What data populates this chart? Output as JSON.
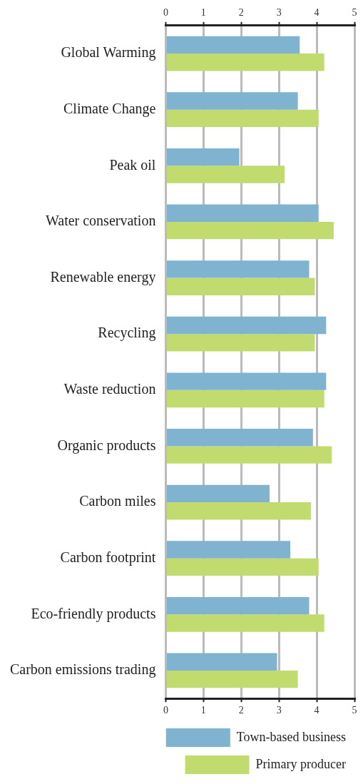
{
  "chart_data": {
    "type": "bar",
    "orientation": "horizontal",
    "categories": [
      "Global Warming",
      "Climate Change",
      "Peak oil",
      "Water conservation",
      "Renewable energy",
      "Recycling",
      "Waste reduction",
      "Organic products",
      "Carbon miles",
      "Carbon footprint",
      "Eco-friendly products",
      "Carbon emissions trading"
    ],
    "series": [
      {
        "name": "Town-based business",
        "color": "#7fb3cf",
        "values": [
          3.55,
          3.5,
          1.95,
          4.05,
          3.8,
          4.25,
          4.25,
          3.9,
          2.75,
          3.3,
          3.8,
          2.95
        ]
      },
      {
        "name": "Primary producer",
        "color": "#c2db6f",
        "values": [
          4.2,
          4.05,
          3.15,
          4.45,
          3.95,
          3.95,
          4.2,
          4.4,
          3.85,
          4.05,
          4.2,
          3.5
        ]
      }
    ],
    "xlim": [
      0,
      5
    ],
    "xticks": [
      0,
      1,
      2,
      3,
      4,
      5
    ],
    "x2lim": [
      0,
      5
    ],
    "x2ticks": [
      0,
      1,
      2,
      3,
      4,
      5
    ],
    "grid": "x",
    "legend": "bottom right"
  }
}
